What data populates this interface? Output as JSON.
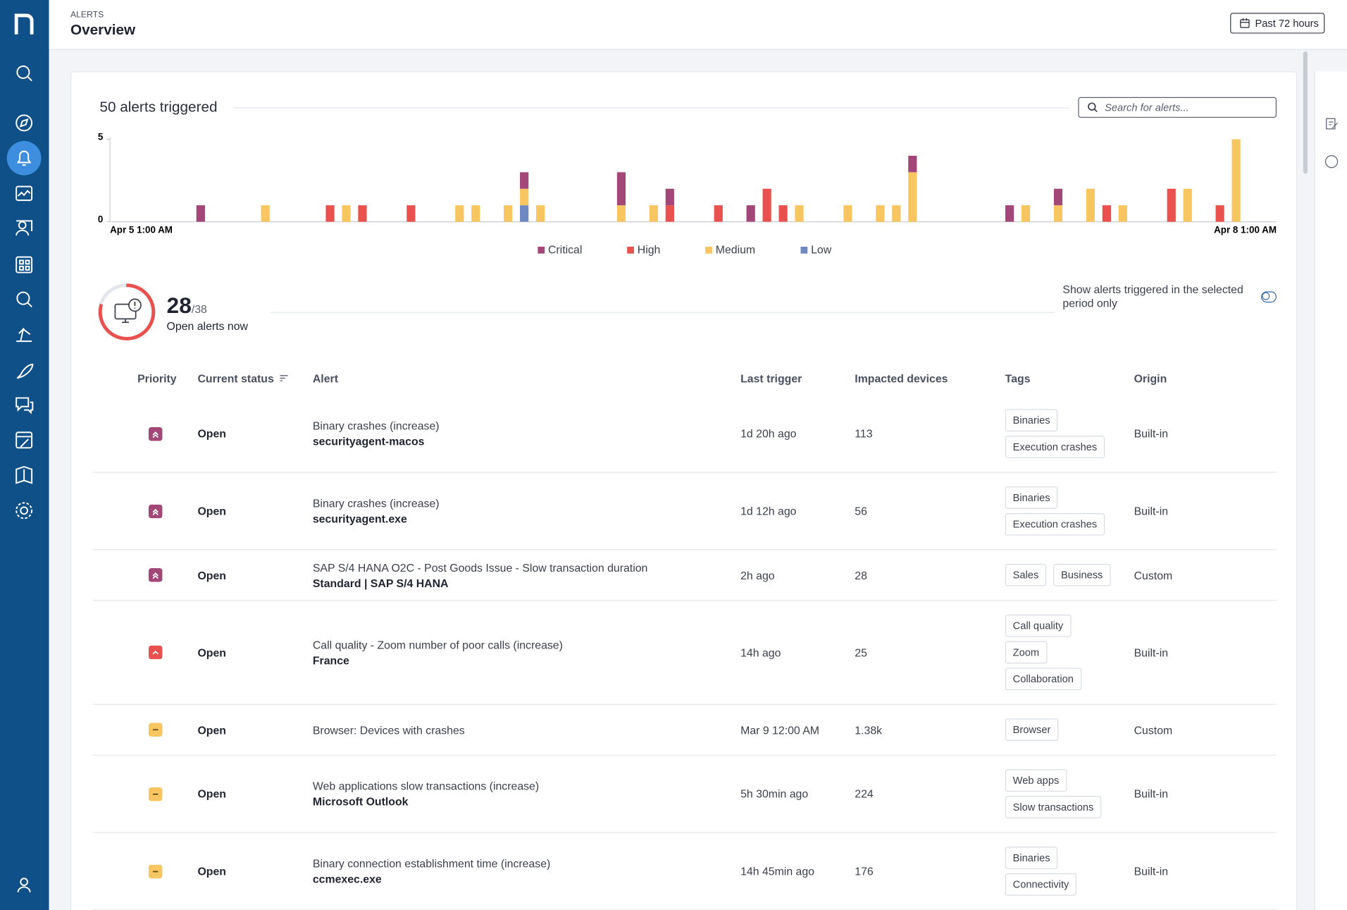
{
  "header": {
    "section": "ALERTS",
    "title": "Overview",
    "period_button": "Past 72 hours"
  },
  "chart_data": {
    "type": "bar",
    "stacked": true,
    "title": "50 alerts triggered",
    "categories": [
      "Apr 5 1:00 AM",
      null,
      null,
      null,
      null,
      null,
      null,
      null,
      null,
      null,
      null,
      null,
      null,
      null,
      null,
      null,
      null,
      null,
      null,
      null,
      null,
      null,
      null,
      null,
      null,
      null,
      null,
      null,
      null,
      null,
      null,
      null,
      null,
      null,
      null,
      null,
      null,
      null,
      null,
      null,
      null,
      null,
      null,
      null,
      null,
      null,
      null,
      null,
      null,
      null,
      null,
      null,
      null,
      null,
      null,
      null,
      null,
      null,
      null,
      null,
      null,
      null,
      null,
      null,
      null,
      null,
      null,
      null,
      null,
      null,
      null,
      "Apr 8 1:00 AM"
    ],
    "series": [
      {
        "name": "Critical",
        "color": "#a24777",
        "values": [
          0,
          0,
          0,
          0,
          0,
          1,
          0,
          0,
          0,
          0,
          0,
          0,
          0,
          0,
          0,
          0,
          0,
          0,
          0,
          0,
          0,
          0,
          0,
          0,
          0,
          1,
          0,
          0,
          0,
          0,
          0,
          2,
          0,
          0,
          1,
          0,
          0,
          0,
          0,
          1,
          0,
          0,
          0,
          0,
          0,
          0,
          0,
          0,
          0,
          1,
          0,
          0,
          0,
          0,
          0,
          1,
          0,
          0,
          1,
          0,
          0,
          0,
          0,
          0,
          0,
          0,
          0,
          0,
          0,
          0,
          0,
          0
        ]
      },
      {
        "name": "High",
        "color": "#e8514e",
        "values": [
          0,
          0,
          0,
          0,
          0,
          0,
          0,
          0,
          0,
          0,
          0,
          0,
          0,
          1,
          0,
          1,
          0,
          0,
          1,
          0,
          0,
          0,
          0,
          0,
          0,
          0,
          0,
          0,
          0,
          0,
          0,
          0,
          0,
          0,
          1,
          0,
          0,
          1,
          0,
          0,
          2,
          1,
          0,
          0,
          0,
          0,
          0,
          0,
          0,
          0,
          0,
          0,
          0,
          0,
          0,
          0,
          0,
          0,
          0,
          0,
          0,
          1,
          0,
          0,
          0,
          2,
          0,
          0,
          1,
          0,
          0,
          0
        ]
      },
      {
        "name": "Medium",
        "color": "#f8c660",
        "values": [
          0,
          0,
          0,
          0,
          0,
          0,
          0,
          0,
          0,
          1,
          0,
          0,
          0,
          0,
          1,
          0,
          0,
          0,
          0,
          0,
          0,
          1,
          1,
          0,
          1,
          1,
          1,
          0,
          0,
          0,
          0,
          1,
          0,
          1,
          0,
          0,
          0,
          0,
          0,
          0,
          0,
          0,
          1,
          0,
          0,
          1,
          0,
          1,
          1,
          3,
          0,
          0,
          0,
          0,
          0,
          0,
          1,
          0,
          1,
          0,
          2,
          0,
          1,
          0,
          0,
          0,
          2,
          0,
          0,
          5,
          0,
          0
        ]
      },
      {
        "name": "Low",
        "color": "#6e88c2",
        "values": [
          0,
          0,
          0,
          0,
          0,
          0,
          0,
          0,
          0,
          0,
          0,
          0,
          0,
          0,
          0,
          0,
          0,
          0,
          0,
          0,
          0,
          0,
          0,
          0,
          0,
          1,
          0,
          0,
          0,
          0,
          0,
          0,
          0,
          0,
          0,
          0,
          0,
          0,
          0,
          0,
          0,
          0,
          0,
          0,
          0,
          0,
          0,
          0,
          0,
          0,
          0,
          0,
          0,
          0,
          0,
          0,
          0,
          0,
          0,
          0,
          0,
          0,
          0,
          0,
          0,
          0,
          0,
          0,
          0,
          0,
          0,
          0
        ]
      }
    ],
    "ylim": [
      0,
      5
    ],
    "yticks": [
      0,
      5
    ],
    "legend": "bottom"
  },
  "search_placeholder": "Search for alerts...",
  "open_alerts": {
    "count": "28",
    "total": "/38",
    "label": "Open alerts now"
  },
  "toggle_label": "Show alerts triggered in the selected period only",
  "table": {
    "columns": [
      "Priority",
      "Current status",
      "Alert",
      "Last trigger",
      "Impacted devices",
      "Tags",
      "Origin"
    ],
    "rows": [
      {
        "status": "Open",
        "alert": "Binary crashes (increase)",
        "target": "securityagent-macos",
        "last_trigger": "1d 20h ago",
        "devices": "113",
        "tags": [
          "Binaries",
          "Execution crashes"
        ],
        "origin": "Built-in"
      },
      {
        "status": "Open",
        "alert": "Binary crashes (increase)",
        "target": "securityagent.exe",
        "last_trigger": "1d 12h ago",
        "devices": "56",
        "tags": [
          "Binaries",
          "Execution crashes"
        ],
        "origin": "Built-in"
      },
      {
        "status": "Open",
        "alert": "SAP S/4 HANA O2C - Post Goods Issue - Slow transaction duration",
        "target": "Standard | SAP S/4 HANA",
        "last_trigger": "2h ago",
        "devices": "28",
        "tags": [
          "Sales",
          "Business"
        ],
        "origin": "Custom"
      },
      {
        "status": "Open",
        "alert": "Call quality - Zoom number of poor calls (increase)",
        "target": "France",
        "last_trigger": "14h ago",
        "devices": "25",
        "tags": [
          "Call quality",
          "Zoom",
          "Collaboration"
        ],
        "origin": "Built-in"
      },
      {
        "status": "Open",
        "alert": "Browser: Devices with crashes",
        "last_trigger": "Mar 9 12:00 AM",
        "devices": "1.38k",
        "tags": [
          "Browser"
        ],
        "origin": "Custom"
      },
      {
        "status": "Open",
        "alert": "Web applications slow transactions (increase)",
        "target": "Microsoft Outlook",
        "last_trigger": "5h 30min ago",
        "devices": "224",
        "tags": [
          "Web apps",
          "Slow transactions"
        ],
        "origin": "Built-in"
      },
      {
        "status": "Open",
        "alert": "Binary connection establishment time (increase)",
        "target": "ccmexec.exe",
        "last_trigger": "14h 45min ago",
        "devices": "176",
        "tags": [
          "Binaries",
          "Connectivity"
        ],
        "origin": "Built-in"
      }
    ]
  }
}
